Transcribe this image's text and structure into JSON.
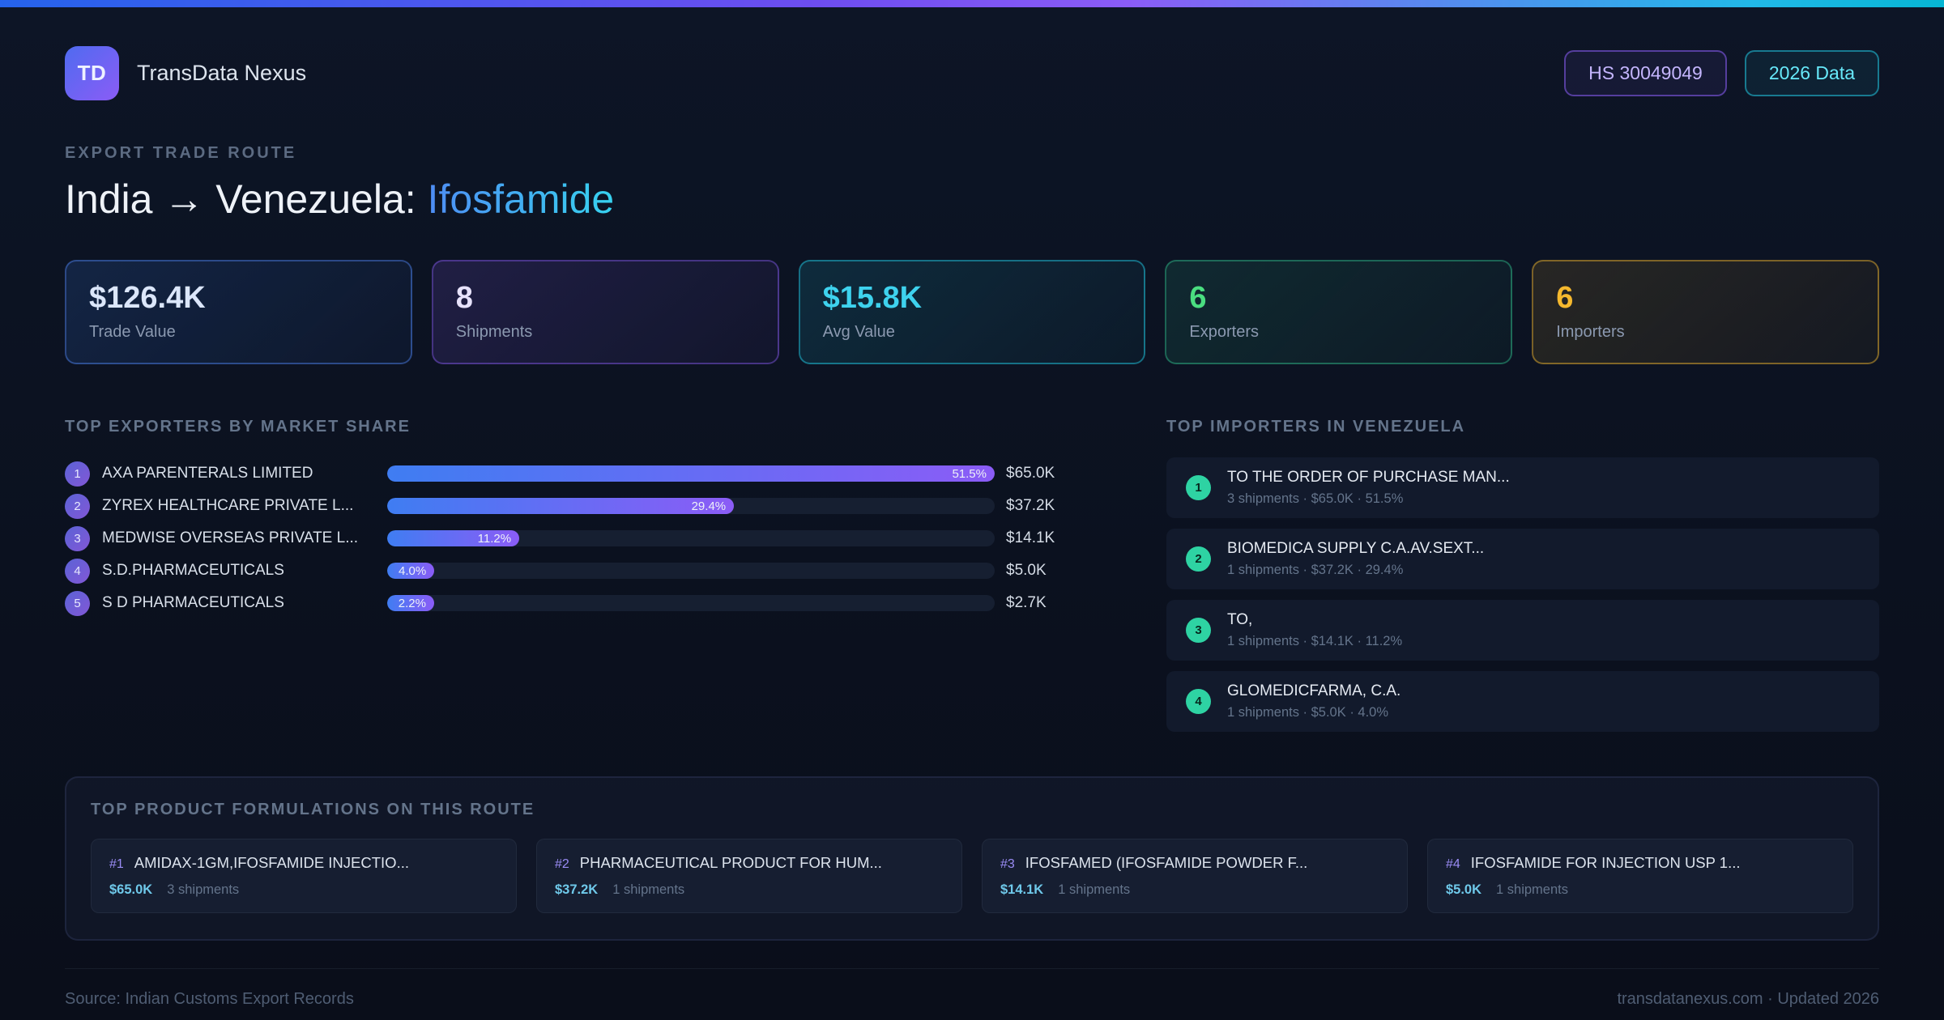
{
  "colors": {
    "accent_blue": "#3b82f6",
    "accent_purple": "#8b5cf6",
    "accent_cyan": "#22d3ee",
    "accent_green": "#4ade80",
    "accent_amber": "#fbbf24",
    "accent_teal_badge": "#2ed3a3",
    "background": "#0b111f"
  },
  "header": {
    "logo_text": "TD",
    "app_name": "TransData Nexus",
    "hs_badge": "HS 30049049",
    "year_badge": "2026 Data"
  },
  "hero": {
    "eyebrow": "EXPORT TRADE ROUTE",
    "title_prefix": "India → Venezuela: ",
    "title_highlight": "Ifosfamide"
  },
  "stats": [
    {
      "value": "$126.4K",
      "label": "Trade Value"
    },
    {
      "value": "8",
      "label": "Shipments"
    },
    {
      "value": "$15.8K",
      "label": "Avg Value"
    },
    {
      "value": "6",
      "label": "Exporters"
    },
    {
      "value": "6",
      "label": "Importers"
    }
  ],
  "exporters": {
    "title": "TOP EXPORTERS BY MARKET SHARE",
    "max_share_pct": 51.5,
    "rows": [
      {
        "rank": "1",
        "name": "AXA PARENTERALS LIMITED",
        "share_pct": 51.5,
        "share_label": "51.5%",
        "value": "$65.0K"
      },
      {
        "rank": "2",
        "name": "ZYREX HEALTHCARE PRIVATE L...",
        "share_pct": 29.4,
        "share_label": "29.4%",
        "value": "$37.2K"
      },
      {
        "rank": "3",
        "name": "MEDWISE OVERSEAS PRIVATE L...",
        "share_pct": 11.2,
        "share_label": "11.2%",
        "value": "$14.1K"
      },
      {
        "rank": "4",
        "name": "S.D.PHARMACEUTICALS",
        "share_pct": 4.0,
        "share_label": "4.0%",
        "value": "$5.0K"
      },
      {
        "rank": "5",
        "name": "S D PHARMACEUTICALS",
        "share_pct": 2.2,
        "share_label": "2.2%",
        "value": "$2.7K"
      }
    ]
  },
  "importers": {
    "title": "TOP IMPORTERS IN VENEZUELA",
    "rows": [
      {
        "rank": "1",
        "name": "TO THE ORDER OF PURCHASE MAN...",
        "meta": "3 shipments · $65.0K · 51.5%"
      },
      {
        "rank": "2",
        "name": "BIOMEDICA SUPPLY C.A.AV.SEXT...",
        "meta": "1 shipments · $37.2K · 29.4%"
      },
      {
        "rank": "3",
        "name": "TO,",
        "meta": "1 shipments · $14.1K · 11.2%"
      },
      {
        "rank": "4",
        "name": "GLOMEDICFARMA, C.A.",
        "meta": "1 shipments · $5.0K · 4.0%"
      }
    ]
  },
  "formulations": {
    "title": "TOP PRODUCT FORMULATIONS ON THIS ROUTE",
    "cards": [
      {
        "rank": "#1",
        "name": "AMIDAX-1GM,IFOSFAMIDE INJECTIO...",
        "value": "$65.0K",
        "shipments": "3 shipments"
      },
      {
        "rank": "#2",
        "name": "PHARMACEUTICAL PRODUCT FOR HUM...",
        "value": "$37.2K",
        "shipments": "1 shipments"
      },
      {
        "rank": "#3",
        "name": "IFOSFAMED (IFOSFAMIDE POWDER F...",
        "value": "$14.1K",
        "shipments": "1 shipments"
      },
      {
        "rank": "#4",
        "name": "IFOSFAMIDE FOR INJECTION USP 1...",
        "value": "$5.0K",
        "shipments": "1 shipments"
      }
    ]
  },
  "footer": {
    "source": "Source: Indian Customs Export Records",
    "site": "transdatanexus.com · Updated 2026"
  }
}
